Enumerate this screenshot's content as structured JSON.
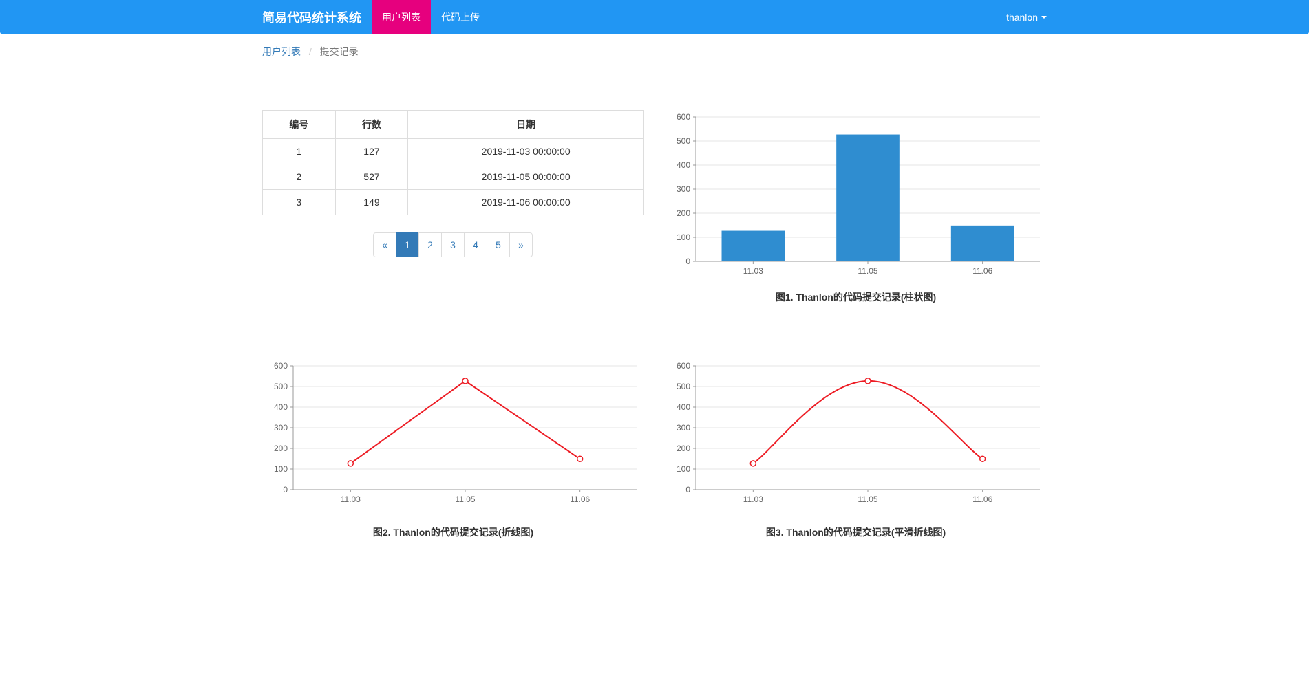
{
  "navbar": {
    "brand": "简易代码统计系统",
    "items": [
      {
        "label": "用户列表",
        "active": true
      },
      {
        "label": "代码上传",
        "active": false
      }
    ],
    "user": "thanlon"
  },
  "breadcrumb": {
    "link": "用户列表",
    "current": "提交记录"
  },
  "table": {
    "columns": [
      "编号",
      "行数",
      "日期"
    ],
    "rows": [
      [
        "1",
        "127",
        "2019-11-03 00:00:00"
      ],
      [
        "2",
        "527",
        "2019-11-05 00:00:00"
      ],
      [
        "3",
        "149",
        "2019-11-06 00:00:00"
      ]
    ]
  },
  "pagination": {
    "prev": "«",
    "next": "»",
    "pages": [
      "1",
      "2",
      "3",
      "4",
      "5"
    ],
    "active": "1"
  },
  "chart1": {
    "type": "bar",
    "title": "图1. Thanlon的代码提交记录(柱状图)",
    "categories": [
      "11.03",
      "11.05",
      "11.06"
    ],
    "values": [
      127,
      527,
      149
    ],
    "bar_color": "#2f8dd0",
    "ylim": [
      0,
      600
    ],
    "ytick_step": 100,
    "background_color": "#ffffff",
    "grid_color": "#e6e6e6",
    "axis_color": "#999999",
    "label_color": "#666666",
    "label_fontsize": 12,
    "title_fontsize": 14,
    "bar_width": 0.55
  },
  "chart2": {
    "type": "line",
    "title": "图2. Thanlon的代码提交记录(折线图)",
    "categories": [
      "11.03",
      "11.05",
      "11.06"
    ],
    "values": [
      127,
      527,
      149
    ],
    "line_color": "#ed1c24",
    "marker_fill": "#ffffff",
    "marker_stroke": "#ed1c24",
    "marker_radius": 4,
    "line_width": 2,
    "ylim": [
      0,
      600
    ],
    "ytick_step": 100,
    "background_color": "#ffffff",
    "grid_color": "#e6e6e6",
    "axis_color": "#999999",
    "label_color": "#666666",
    "label_fontsize": 12,
    "title_fontsize": 14,
    "smooth": false
  },
  "chart3": {
    "type": "line",
    "title": "图3. Thanlon的代码提交记录(平滑折线图)",
    "categories": [
      "11.03",
      "11.05",
      "11.06"
    ],
    "values": [
      127,
      527,
      149
    ],
    "line_color": "#ed1c24",
    "marker_fill": "#ffffff",
    "marker_stroke": "#ed1c24",
    "marker_radius": 4,
    "line_width": 2,
    "ylim": [
      0,
      600
    ],
    "ytick_step": 100,
    "background_color": "#ffffff",
    "grid_color": "#e6e6e6",
    "axis_color": "#999999",
    "label_color": "#666666",
    "label_fontsize": 12,
    "title_fontsize": 14,
    "smooth": true
  }
}
